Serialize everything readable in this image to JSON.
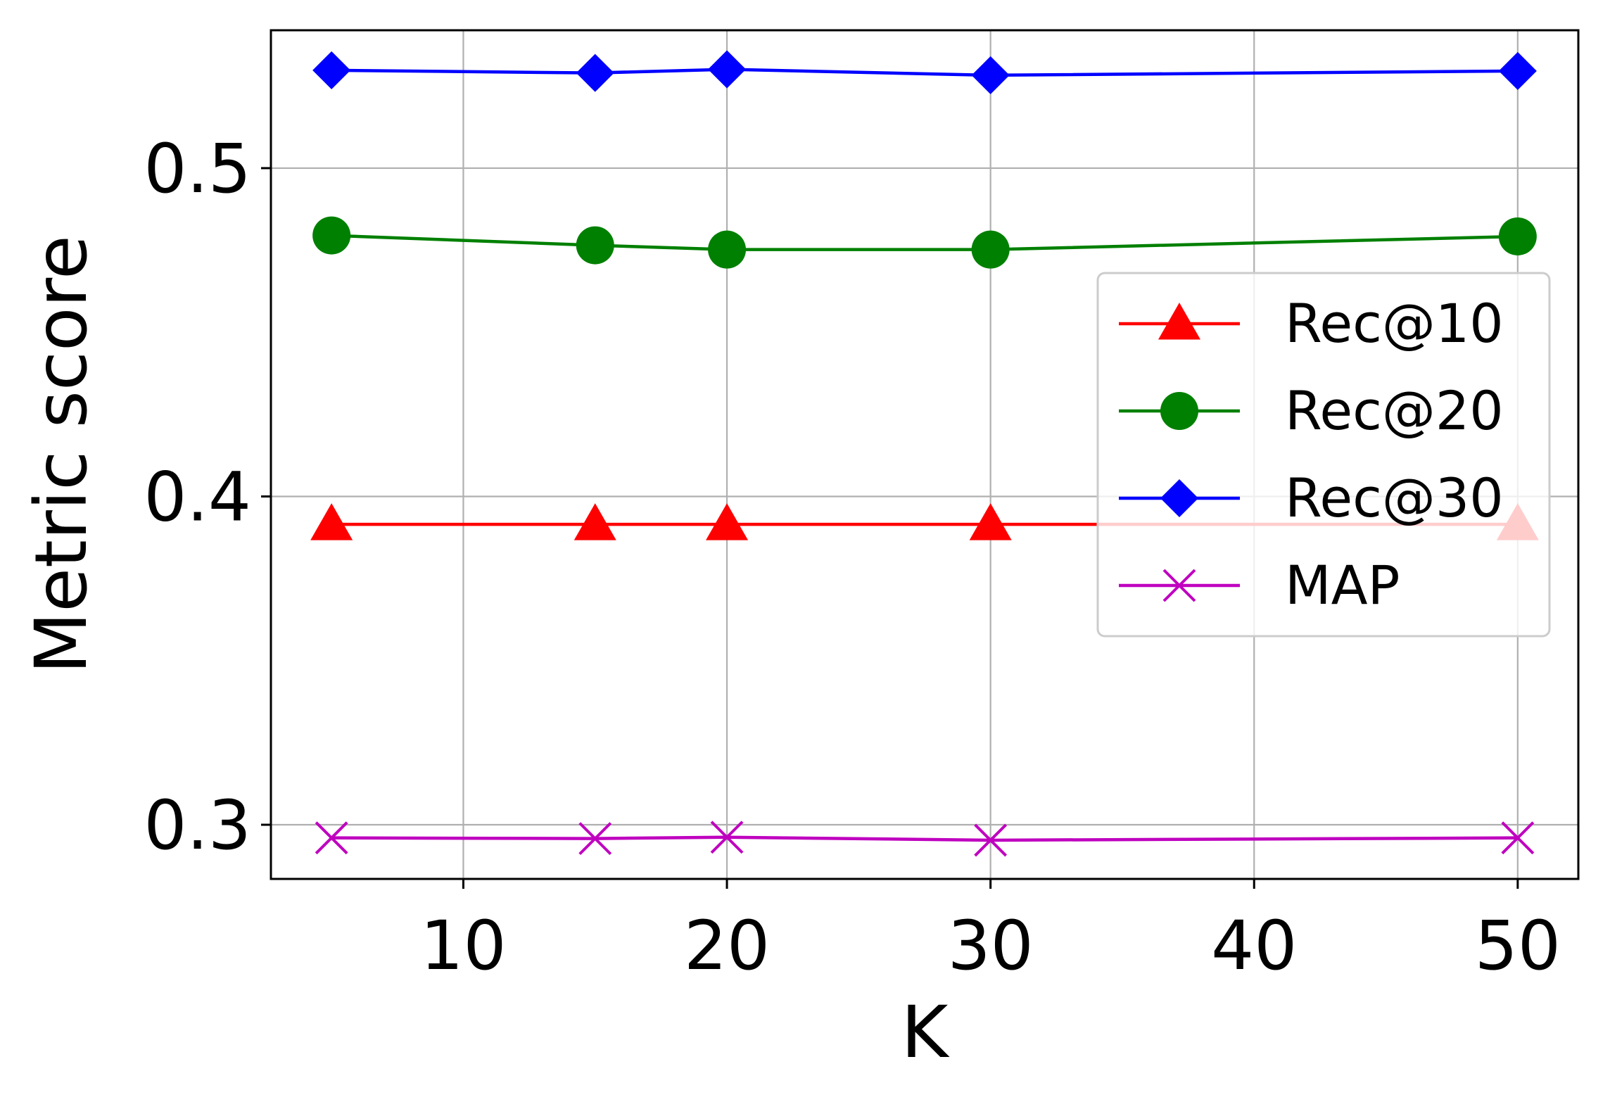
{
  "chart_data": {
    "type": "line",
    "title": "",
    "xlabel": "K",
    "ylabel": "Metric score",
    "x": [
      5,
      15,
      20,
      30,
      50
    ],
    "xlim": [
      2.7,
      52.3
    ],
    "ylim": [
      0.2835,
      0.542
    ],
    "xticks": [
      10,
      20,
      30,
      40,
      50
    ],
    "yticks": [
      0.3,
      0.4,
      0.5
    ],
    "xtick_labels": [
      "10",
      "20",
      "30",
      "40",
      "50"
    ],
    "ytick_labels": [
      "0.3",
      "0.4",
      "0.5"
    ],
    "grid": true,
    "legend_position": "center-right",
    "series": [
      {
        "name": "Rec@10",
        "color": "#ff0000",
        "marker": "triangle",
        "values": [
          0.3915,
          0.3915,
          0.3915,
          0.3915,
          0.3915
        ]
      },
      {
        "name": "Rec@20",
        "color": "#008000",
        "marker": "circle",
        "values": [
          0.4795,
          0.4765,
          0.4752,
          0.4752,
          0.4792
        ]
      },
      {
        "name": "Rec@30",
        "color": "#0000ff",
        "marker": "diamond",
        "values": [
          0.5298,
          0.529,
          0.5301,
          0.5283,
          0.5296
        ]
      },
      {
        "name": "MAP",
        "color": "#bf00bf",
        "marker": "x",
        "values": [
          0.296,
          0.2958,
          0.2962,
          0.2953,
          0.296
        ]
      }
    ]
  }
}
